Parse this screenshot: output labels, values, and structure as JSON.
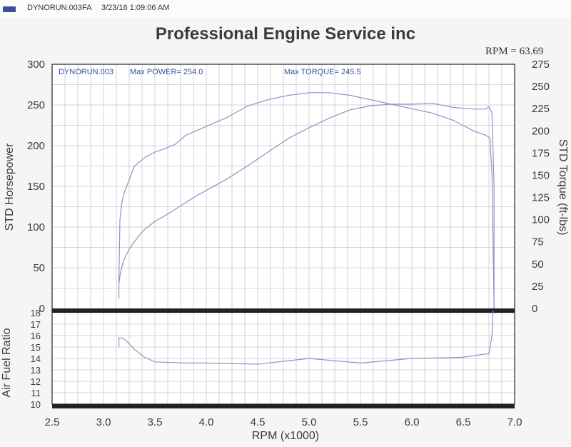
{
  "header": {
    "file_label": "DYNORUN.003FA",
    "timestamp": "3/23/16 1:09:06 AM"
  },
  "title": "Professional Engine Service inc",
  "rpm_readout": "RPM = 63.69",
  "run_label": "DYNORUN.003",
  "max_power_label": "Max POWER= 254.0",
  "max_torque_label": "Max TORQUE= 245.5",
  "colors": {
    "trace": "#8a93c8",
    "text": "#3a4fa0",
    "frame": "#222222"
  },
  "chart_data": [
    {
      "type": "line",
      "xlabel": "RPM (x1000)",
      "ylabel": "STD Horsepower",
      "y2label": "STD Torque (ft-lbs)",
      "xlim": [
        2.5,
        7.0
      ],
      "xticks": [
        "2.5",
        "3.0",
        "3.5",
        "4.0",
        "4.5",
        "5.0",
        "5.5",
        "6.0",
        "6.5",
        "7.0"
      ],
      "ylim": [
        0,
        300
      ],
      "yticks": [
        "0",
        "50",
        "100",
        "150",
        "200",
        "250",
        "300"
      ],
      "y2lim": [
        0,
        275
      ],
      "y2ticks": [
        "0",
        "25",
        "50",
        "75",
        "100",
        "125",
        "150",
        "175",
        "200",
        "225",
        "250",
        "275"
      ],
      "grid": true,
      "series": [
        {
          "name": "STD Horsepower",
          "axis": "left",
          "x": [
            3.15,
            3.15,
            3.16,
            3.18,
            3.2,
            3.25,
            3.3,
            3.35,
            3.4,
            3.5,
            3.6,
            3.7,
            3.8,
            3.9,
            4.0,
            4.2,
            4.4,
            4.6,
            4.8,
            5.0,
            5.2,
            5.4,
            5.6,
            5.8,
            6.0,
            6.2,
            6.4,
            6.6,
            6.72,
            6.75,
            6.78,
            6.8,
            6.8
          ],
          "y": [
            12,
            30,
            40,
            52,
            60,
            73,
            82,
            90,
            97,
            107,
            114,
            122,
            130,
            138,
            145,
            159,
            175,
            192,
            209,
            222,
            234,
            244,
            249,
            251,
            251,
            252,
            247,
            245,
            245,
            248,
            240,
            150,
            0
          ]
        },
        {
          "name": "STD Torque (ft-lbs)",
          "axis": "right",
          "x": [
            3.15,
            3.16,
            3.18,
            3.2,
            3.25,
            3.3,
            3.4,
            3.5,
            3.6,
            3.7,
            3.8,
            4.0,
            4.2,
            4.4,
            4.6,
            4.8,
            5.0,
            5.2,
            5.4,
            5.6,
            5.8,
            6.0,
            6.2,
            6.4,
            6.6,
            6.72,
            6.76,
            6.78,
            6.8
          ],
          "y": [
            30,
            100,
            120,
            130,
            145,
            160,
            170,
            176,
            180,
            185,
            195,
            205,
            215,
            228,
            235,
            240,
            243,
            243,
            240,
            235,
            230,
            225,
            220,
            212,
            200,
            195,
            192,
            150,
            0
          ]
        }
      ]
    },
    {
      "type": "line",
      "xlabel": "RPM (x1000)",
      "ylabel": "Air Fuel Ratio",
      "xlim": [
        2.5,
        7.0
      ],
      "ylim": [
        10,
        18
      ],
      "yticks": [
        "10",
        "11",
        "12",
        "13",
        "14",
        "15",
        "16",
        "17",
        "18"
      ],
      "grid": true,
      "series": [
        {
          "x": [
            3.15,
            3.15,
            3.17,
            3.2,
            3.25,
            3.3,
            3.4,
            3.5,
            3.8,
            4.0,
            4.5,
            5.0,
            5.5,
            6.0,
            6.5,
            6.72,
            6.75,
            6.78,
            6.79
          ],
          "y": [
            15.0,
            15.8,
            15.8,
            15.7,
            15.3,
            14.8,
            14.1,
            13.7,
            13.6,
            13.6,
            13.5,
            14.0,
            13.6,
            14.0,
            14.1,
            14.4,
            14.4,
            16.0,
            18.2
          ]
        }
      ]
    }
  ]
}
